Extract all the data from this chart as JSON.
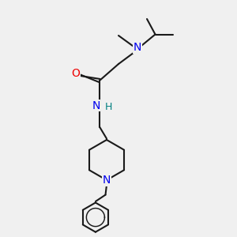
{
  "bg_color": "#f0f0f0",
  "line_color": "#1a1a1a",
  "N_color": "#0000ee",
  "O_color": "#ee0000",
  "H_color": "#008080",
  "line_width": 1.5,
  "font_size": 10,
  "fig_w": 3.0,
  "fig_h": 3.0,
  "dpi": 100,
  "xlim": [
    0,
    10
  ],
  "ylim": [
    0,
    10
  ]
}
